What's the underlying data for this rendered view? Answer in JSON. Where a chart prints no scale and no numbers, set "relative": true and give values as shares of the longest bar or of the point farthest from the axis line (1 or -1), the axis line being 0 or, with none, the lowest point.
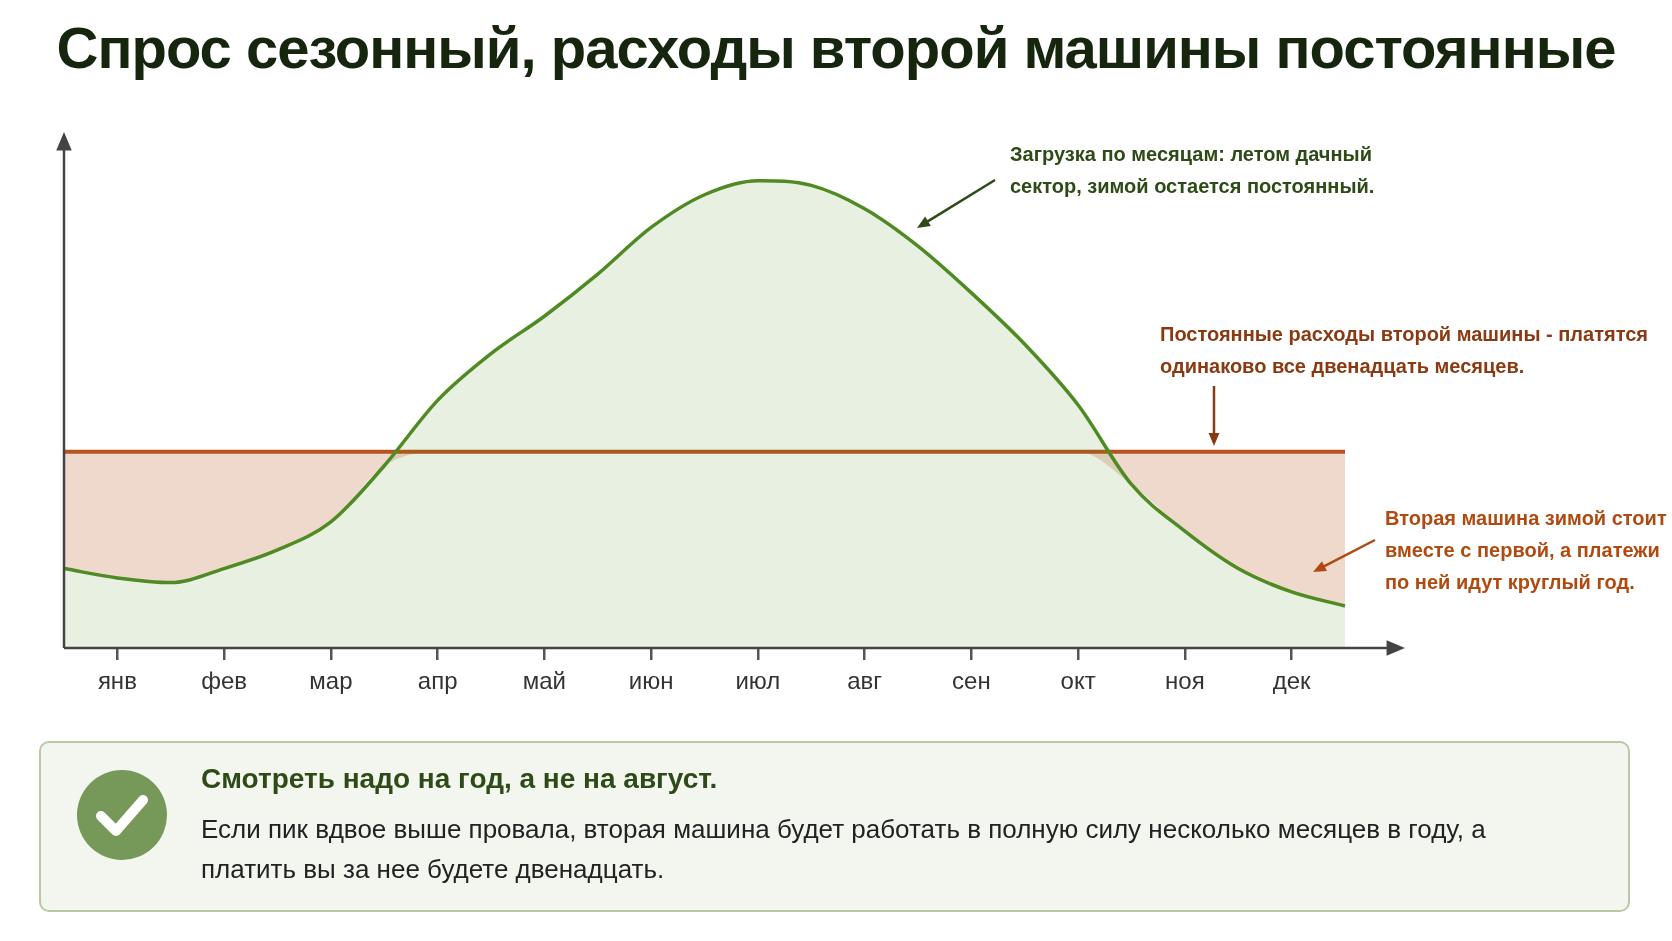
{
  "chart_data": {
    "type": "area",
    "title": "Спрос сезонный, расходы второй машины постоянные",
    "relative": true,
    "marker": "none",
    "categories": [
      null,
      "янв",
      null,
      "фев",
      null,
      "мар",
      null,
      "апр",
      null,
      "май",
      null,
      "июн",
      null,
      "июл",
      null,
      "авг",
      null,
      "сен",
      null,
      "окт",
      null,
      "ноя",
      null,
      "дек",
      null
    ],
    "series": [
      {
        "type": "area",
        "color": "#4f8a22",
        "values": [
          0.17,
          0.15,
          0.14,
          0.17,
          0.21,
          0.27,
          0.39,
          0.53,
          0.63,
          0.71,
          0.8,
          0.9,
          0.97,
          1.0,
          0.99,
          0.94,
          0.86,
          0.76,
          0.65,
          0.52,
          0.35,
          0.25,
          0.17,
          0.12,
          0.09
        ]
      },
      {
        "type": "line",
        "color": "#b5541c",
        "lower": [
          0.17,
          0.15,
          0.14,
          0.17,
          0.21,
          0.27,
          0.39,
          0.42,
          0.42,
          0.42,
          0.42,
          0.42,
          0.42,
          0.42,
          0.42,
          0.42,
          0.42,
          0.42,
          0.42,
          0.42,
          0.35,
          0.25,
          0.17,
          0.12,
          0.09
        ],
        "upper": [
          0.42,
          0.42,
          0.42,
          0.42,
          0.42,
          0.42,
          0.42,
          0.42,
          0.42,
          0.42,
          0.42,
          0.42,
          0.42,
          0.42,
          0.42,
          0.42,
          0.42,
          0.42,
          0.42,
          0.42,
          0.42,
          0.42,
          0.42,
          0.42,
          0.42
        ],
        "values": [
          0.42,
          0.42,
          0.42,
          0.42,
          0.42,
          0.42,
          0.42,
          0.42,
          0.42,
          0.42,
          0.42,
          0.42,
          0.42,
          0.42,
          0.42,
          0.42,
          0.42,
          0.42,
          0.42,
          0.42,
          0.42,
          0.42,
          0.42,
          0.42,
          0.42
        ]
      }
    ],
    "annotations": [
      "Загрузка по месяцам: летом дачный сектор, зимой остается постоянный.",
      "Постоянные расходы второй машины - платятся одинаково все двенадцать месяцев.",
      "Вторая машина зимой стоит вместе с первой, а платежи по ней идут круглый год.",
      "Смотреть надо на год, а не на август.",
      "Если пик вдвое выше провала, вторая машина будет работать в полную силу несколько месяцев в году, а платить вы за нее будете двенадцать."
    ]
  }
}
